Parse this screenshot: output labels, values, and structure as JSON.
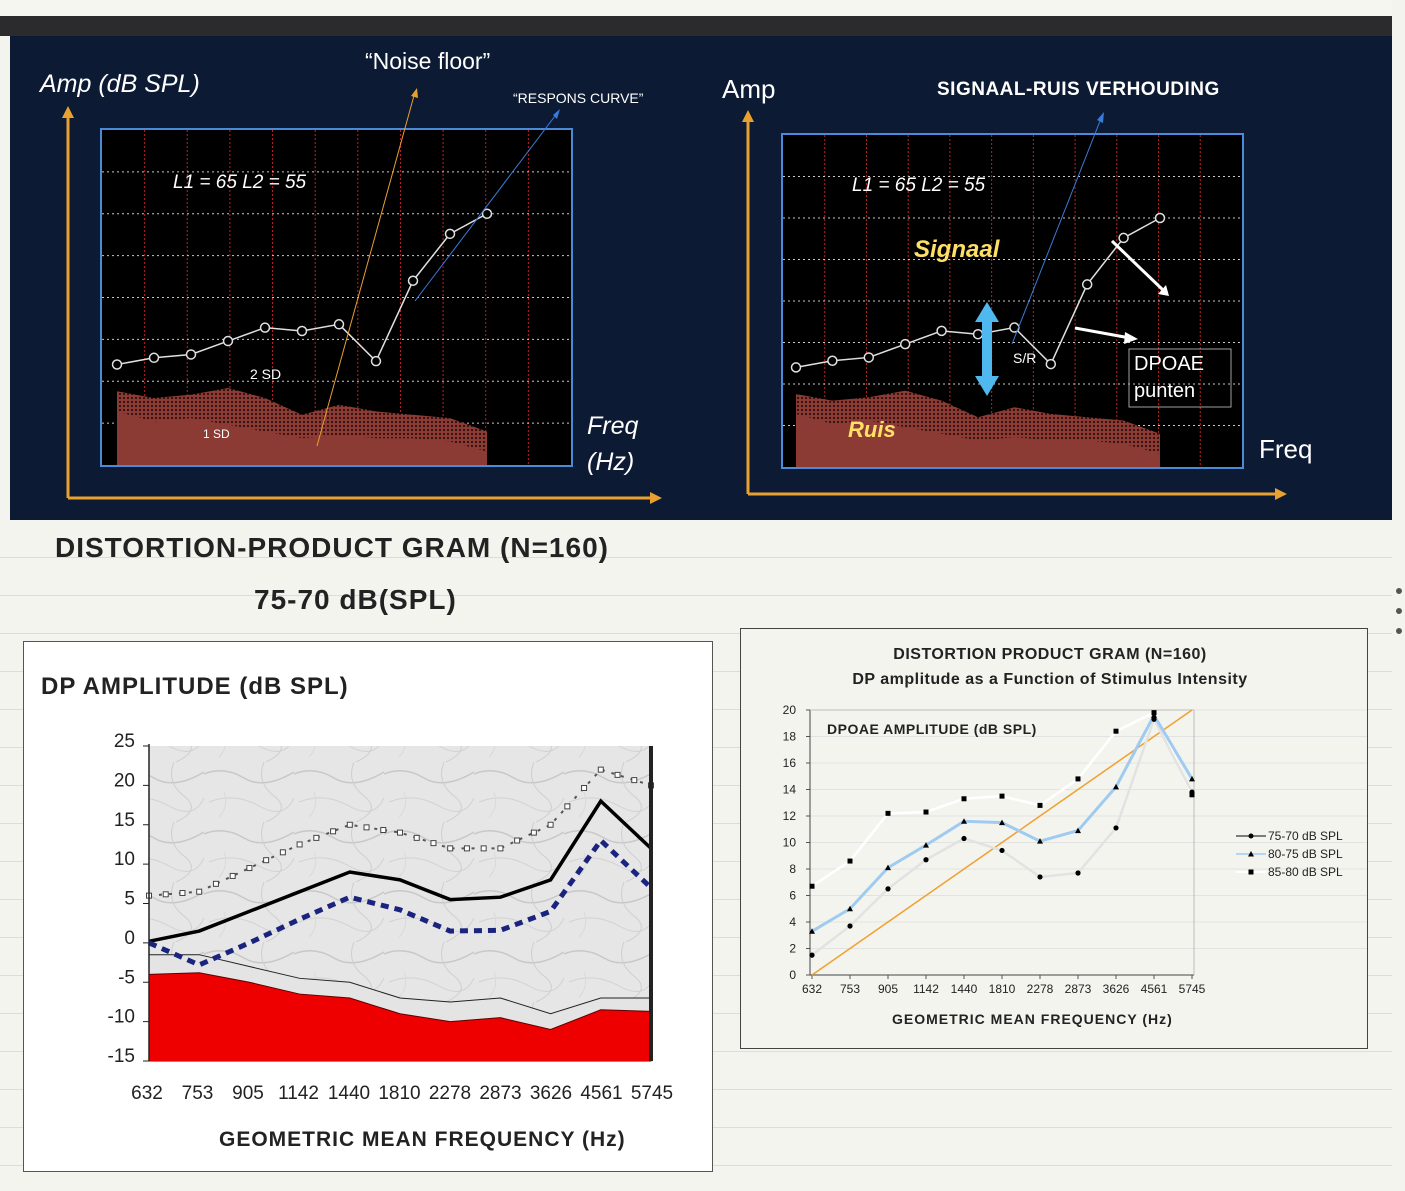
{
  "panel_a": {
    "ylabel": "Amp (dB SPL)",
    "xlabel_line1": "Freq",
    "xlabel_line2": "(Hz)",
    "noise_floor_label": "“Noise floor”",
    "response_curve_label": "“RESPONS CURVE”",
    "levels_label": "L1 = 65  L2 = 55",
    "sd2_label": "2 SD",
    "sd1_label": "1 SD"
  },
  "panel_b": {
    "ylabel": "Amp",
    "xlabel": "Freq",
    "title": "SIGNAAL-RUIS VERHOUDING",
    "levels_label": "L1 = 65  L2 = 55",
    "signal_label": "Signaal",
    "noise_label": "Ruis",
    "sr_label": "S/R",
    "dpoae_label_line1": "DPOAE",
    "dpoae_label_line2": "punten"
  },
  "panel_c": {
    "title_line1": "DISTORTION-PRODUCT GRAM (N=160)",
    "title_line2": "75-70 dB(SPL)",
    "ylabel": "DP AMPLITUDE (dB SPL)",
    "xlabel": "GEOMETRIC MEAN FREQUENCY (Hz)"
  },
  "panel_d": {
    "title_line1": "DISTORTION PRODUCT GRAM (N=160)",
    "title_line2": "DP amplitude as a Function of Stimulus Intensity",
    "ylabel": "DPOAE AMPLITUDE (dB SPL)",
    "xlabel": "GEOMETRIC MEAN FREQUENCY (Hz)"
  },
  "colors": {
    "dark_bg": "#0c1a33",
    "axis_orange": "#e8a030",
    "noise_fill": "#8b3a34",
    "red_fill": "#ee0000",
    "light_blue": "#9fcbf0",
    "navy": "#1a237e",
    "label_yellow": "#ffe066"
  },
  "chart_data": [
    {
      "id": "schematic-response",
      "type": "line",
      "yticks": [],
      "xticks": [],
      "series": [
        {
          "values": [
            0.3,
            0.32,
            0.33,
            0.37,
            0.41,
            0.4,
            0.42,
            0.31,
            0.55,
            0.69,
            0.75
          ]
        },
        {
          "values": [
            0.22,
            0.2,
            0.21,
            0.23,
            0.2,
            0.15,
            0.18,
            0.16,
            0.15,
            0.14,
            0.1
          ]
        },
        {
          "values": [
            0.16,
            0.13,
            0.14,
            0.12,
            0.1,
            0.08,
            0.09,
            0.08,
            0.08,
            0.07,
            0.04
          ]
        }
      ]
    },
    {
      "id": "dp-gram-75-70",
      "type": "area",
      "categories": [
        "632",
        "753",
        "905",
        "1142",
        "1440",
        "1810",
        "2278",
        "2873",
        "3626",
        "4561",
        "5745"
      ],
      "ylim": [
        -15,
        25
      ],
      "yticks": [
        25,
        20,
        15,
        10,
        5,
        0,
        -5,
        -10,
        -15
      ],
      "series": [
        {
          "values": [
            0.2,
            1.5,
            4,
            6.5,
            9,
            8,
            5.5,
            5.8,
            8,
            18,
            12
          ]
        },
        {
          "values": [
            -1,
            0.5,
            3,
            5.5,
            8.5,
            7.5,
            4,
            4,
            7,
            16,
            11
          ]
        },
        {
          "values": [
            -4,
            -3.8,
            -5,
            -6.5,
            -7,
            -9,
            -10,
            -9.5,
            -11,
            -8.5,
            -8.7
          ]
        },
        {
          "values": [
            -1.5,
            -1.5,
            -3,
            -4.5,
            -5,
            -7,
            -7.5,
            -7,
            -9,
            -7,
            -7
          ]
        },
        {
          "values": [
            6,
            6.5,
            9.5,
            12.5,
            15,
            14,
            12,
            12,
            15,
            22,
            20
          ]
        },
        {
          "values": [
            null,
            -2.8,
            0,
            3,
            5.8,
            4.2,
            1.5,
            1.6,
            4,
            13,
            7
          ]
        }
      ]
    },
    {
      "id": "dp-gram-intensity",
      "type": "line",
      "categories": [
        "632",
        "753",
        "905",
        "1142",
        "1440",
        "1810",
        "2278",
        "2873",
        "3626",
        "4561",
        "5745"
      ],
      "ylim": [
        0,
        20
      ],
      "yticks": [
        20,
        18,
        16,
        14,
        12,
        10,
        8,
        6,
        4,
        2,
        0
      ],
      "legend": "right",
      "series": [
        {
          "name": "75-70 dB SPL",
          "values": [
            1.5,
            3.7,
            6.5,
            8.7,
            10.3,
            9.4,
            7.4,
            7.7,
            11.1,
            19.3,
            13.8
          ]
        },
        {
          "name": "80-75 dB SPL",
          "values": [
            3.3,
            5.0,
            8.1,
            9.8,
            11.6,
            11.5,
            10.1,
            10.9,
            14.2,
            19.6,
            14.8
          ]
        },
        {
          "name": "85-80 dB SPL",
          "values": [
            6.7,
            8.6,
            12.2,
            12.3,
            13.3,
            13.5,
            12.8,
            14.8,
            18.4,
            19.8,
            13.6
          ]
        },
        {
          "values": [
            0,
            2,
            4,
            6,
            8,
            10,
            12,
            14,
            16,
            18,
            20
          ]
        }
      ]
    }
  ]
}
